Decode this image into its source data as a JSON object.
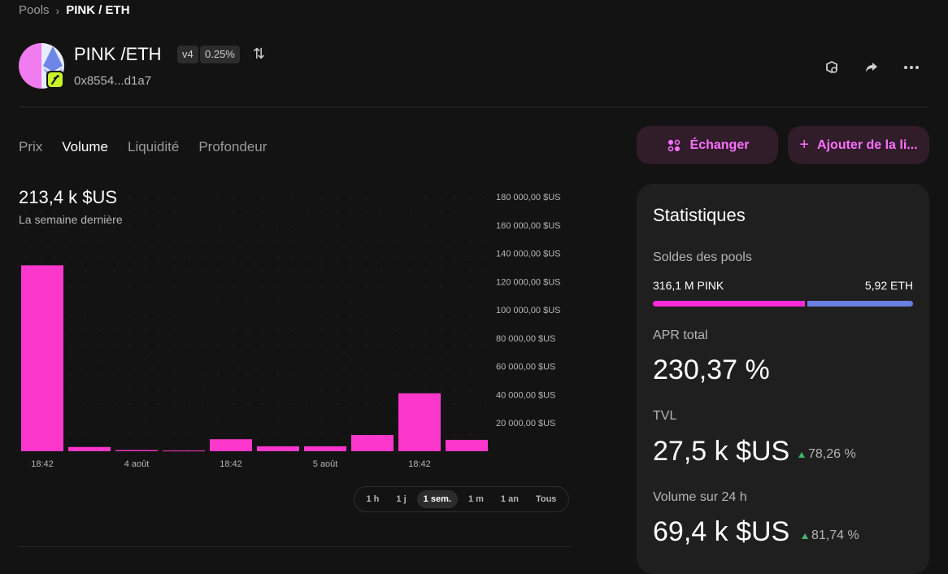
{
  "breadcrumb": {
    "root": "Pools",
    "current": "PINK / ETH"
  },
  "header": {
    "pair": "PINK /ETH",
    "version": "v4",
    "fee": "0.25%",
    "address": "0x8554...d1a7"
  },
  "tabs": [
    "Prix",
    "Volume",
    "Liquidité",
    "Profondeur"
  ],
  "active_tab": "Volume",
  "actions": {
    "swap": "Échanger",
    "add": "Ajouter de la li..."
  },
  "chart_summary": {
    "value": "213,4 k $US",
    "period": "La semaine dernière"
  },
  "chart_data": {
    "type": "bar",
    "categories": [
      "18:42",
      "",
      "4 août",
      "",
      "18:42",
      "",
      "5 août",
      "",
      "18:42",
      ""
    ],
    "values": [
      131500,
      3000,
      800,
      500,
      8500,
      3500,
      3500,
      11500,
      41000,
      8000
    ],
    "y_ticks": [
      "20 000,00 $US",
      "40 000,00 $US",
      "60 000,00 $US",
      "80 000,00 $US",
      "100 000,00 $US",
      "120 000,00 $US",
      "140 000,00 $US",
      "160 000,00 $US",
      "180 000,00 $US"
    ],
    "ylim": [
      0,
      180000
    ],
    "color": "#fc37cc",
    "grid": true
  },
  "ranges": [
    "1 h",
    "1 j",
    "1 sem.",
    "1 m",
    "1 an",
    "Tous"
  ],
  "selected_range": "1 sem.",
  "stats": {
    "title": "Statistiques",
    "balances_label": "Soldes des pools",
    "balance_pink": "316,1 M PINK",
    "balance_eth": "5,92 ETH",
    "apr_label": "APR total",
    "apr_value": "230,37 %",
    "tvl_label": "TVL",
    "tvl_value": "27,5 k $US",
    "tvl_change": "78,26 %",
    "vol_label": "Volume sur 24 h",
    "vol_value": "69,4 k $US",
    "vol_change": "81,74 %"
  }
}
